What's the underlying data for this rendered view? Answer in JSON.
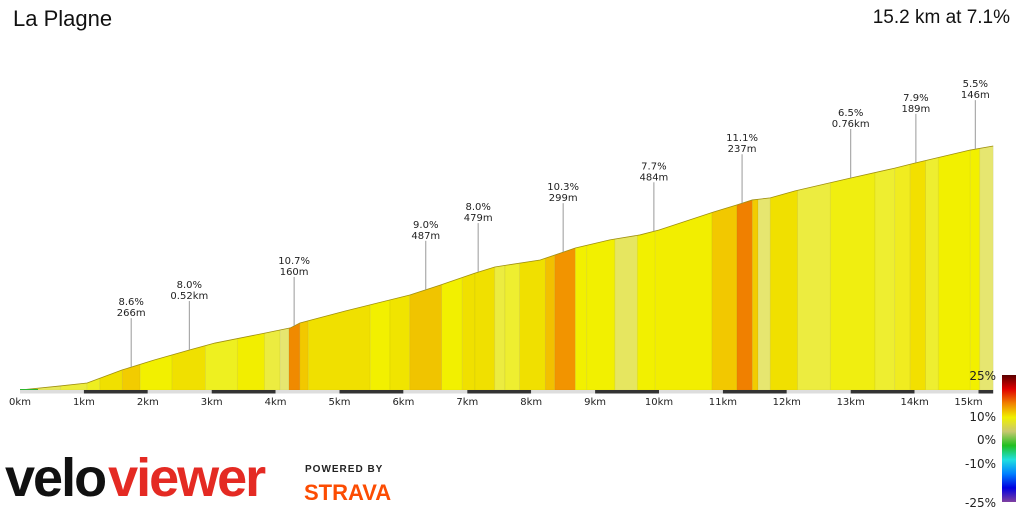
{
  "header": {
    "title": "La Plagne",
    "summary": "15.2 km at 7.1%"
  },
  "chart_data": {
    "type": "area",
    "xlabel": "",
    "ylabel": "",
    "xlim": [
      0,
      15.2
    ],
    "x_ticks": [
      "0km",
      "1km",
      "2km",
      "3km",
      "4km",
      "5km",
      "6km",
      "7km",
      "8km",
      "9km",
      "10km",
      "11km",
      "12km",
      "13km",
      "14km",
      "15km"
    ],
    "profile_km": [
      0,
      0.63,
      1.05,
      1.6,
      2.1,
      2.65,
      3.05,
      3.83,
      4.23,
      4.38,
      5.09,
      6.1,
      6.58,
      7.12,
      7.43,
      8.14,
      8.37,
      8.69,
      9.23,
      9.7,
      10.0,
      10.86,
      11.22,
      11.46,
      11.74,
      12.13,
      13.0,
      13.69,
      14.0,
      14.87,
      15.23
    ],
    "profile_elev_m": [
      0,
      18,
      31,
      89,
      133,
      177,
      208,
      252,
      275,
      297,
      350,
      421,
      465,
      518,
      545,
      576,
      598,
      629,
      665,
      687,
      709,
      789,
      820,
      842,
      851,
      882,
      939,
      983,
      1005,
      1063,
      1081
    ],
    "segments": [
      {
        "from": 0,
        "to": 0.63,
        "color": "#e6e85a",
        "start_color": "#2db52d"
      },
      {
        "from": 0.63,
        "to": 1.05,
        "color": "#ecec3c"
      },
      {
        "from": 1.05,
        "to": 1.25,
        "color": "#eeee20"
      },
      {
        "from": 1.25,
        "to": 1.6,
        "color": "#f0e000"
      },
      {
        "from": 1.6,
        "to": 1.88,
        "color": "#f2cc00"
      },
      {
        "from": 1.88,
        "to": 2.38,
        "color": "#f2f000"
      },
      {
        "from": 2.38,
        "to": 2.9,
        "color": "#f0e000"
      },
      {
        "from": 2.9,
        "to": 3.4,
        "color": "#eef020"
      },
      {
        "from": 3.4,
        "to": 3.83,
        "color": "#f2ee00"
      },
      {
        "from": 3.83,
        "to": 4.07,
        "color": "#ecec40"
      },
      {
        "from": 4.07,
        "to": 4.21,
        "color": "#e6e670"
      },
      {
        "from": 4.21,
        "to": 4.38,
        "color": "#f08a00"
      },
      {
        "from": 4.38,
        "to": 4.51,
        "color": "#f2c800"
      },
      {
        "from": 4.51,
        "to": 5.48,
        "color": "#f0e000"
      },
      {
        "from": 5.48,
        "to": 5.79,
        "color": "#f2f000"
      },
      {
        "from": 5.79,
        "to": 6.1,
        "color": "#f0e400"
      },
      {
        "from": 6.1,
        "to": 6.6,
        "color": "#f0c400"
      },
      {
        "from": 6.6,
        "to": 6.92,
        "color": "#f2f000"
      },
      {
        "from": 6.92,
        "to": 7.12,
        "color": "#f0e000"
      },
      {
        "from": 7.12,
        "to": 7.43,
        "color": "#f0e000"
      },
      {
        "from": 7.43,
        "to": 7.59,
        "color": "#ecec40"
      },
      {
        "from": 7.59,
        "to": 7.82,
        "color": "#eeee30"
      },
      {
        "from": 7.82,
        "to": 8.22,
        "color": "#f0e000"
      },
      {
        "from": 8.22,
        "to": 8.37,
        "color": "#f2c000"
      },
      {
        "from": 8.37,
        "to": 8.69,
        "color": "#f29400"
      },
      {
        "from": 8.69,
        "to": 8.87,
        "color": "#f2f000"
      },
      {
        "from": 8.87,
        "to": 9.31,
        "color": "#f2f000"
      },
      {
        "from": 9.31,
        "to": 9.66,
        "color": "#e6e660"
      },
      {
        "from": 9.66,
        "to": 9.94,
        "color": "#f2f000"
      },
      {
        "from": 9.94,
        "to": 10.83,
        "color": "#f2ee00"
      },
      {
        "from": 10.83,
        "to": 11.22,
        "color": "#f2c800"
      },
      {
        "from": 11.22,
        "to": 11.46,
        "color": "#f08000"
      },
      {
        "from": 11.46,
        "to": 11.55,
        "color": "#f2cc00"
      },
      {
        "from": 11.55,
        "to": 11.74,
        "color": "#e6e670"
      },
      {
        "from": 11.74,
        "to": 12.17,
        "color": "#f0e000"
      },
      {
        "from": 12.17,
        "to": 12.68,
        "color": "#ecec40"
      },
      {
        "from": 12.68,
        "to": 13.38,
        "color": "#f0ee10"
      },
      {
        "from": 13.38,
        "to": 13.69,
        "color": "#eeee30"
      },
      {
        "from": 13.69,
        "to": 13.93,
        "color": "#f0ec20"
      },
      {
        "from": 13.93,
        "to": 14.17,
        "color": "#f2e000"
      },
      {
        "from": 14.17,
        "to": 14.37,
        "color": "#eeee30"
      },
      {
        "from": 14.37,
        "to": 14.87,
        "color": "#f2f000"
      },
      {
        "from": 14.87,
        "to": 15.02,
        "color": "#f2f000"
      },
      {
        "from": 15.02,
        "to": 15.23,
        "color": "#e6e670"
      }
    ],
    "annotations": [
      {
        "km": 1.74,
        "grade": "8.6%",
        "length": "266m"
      },
      {
        "km": 2.65,
        "grade": "8.0%",
        "length": "0.52km"
      },
      {
        "km": 4.29,
        "grade": "10.7%",
        "length": "160m"
      },
      {
        "km": 6.35,
        "grade": "9.0%",
        "length": "487m"
      },
      {
        "km": 7.17,
        "grade": "8.0%",
        "length": "479m"
      },
      {
        "km": 8.5,
        "grade": "10.3%",
        "length": "299m"
      },
      {
        "km": 9.92,
        "grade": "7.7%",
        "length": "484m"
      },
      {
        "km": 11.3,
        "grade": "11.1%",
        "length": "237m"
      },
      {
        "km": 13.0,
        "grade": "6.5%",
        "length": "0.76km"
      },
      {
        "km": 14.02,
        "grade": "7.9%",
        "length": "189m"
      },
      {
        "km": 14.95,
        "grade": "5.5%",
        "length": "146m"
      }
    ],
    "legend": {
      "labels": [
        "25%",
        "10%",
        "0%",
        "-10%",
        "-25%"
      ],
      "colors": [
        "#5a0000",
        "#e00000",
        "#f08000",
        "#f0f000",
        "#c8c870",
        "#20c020",
        "#20e0e0",
        "#0080ff",
        "#0000e0",
        "#8040a0"
      ]
    }
  },
  "branding": {
    "logo_left": "velo",
    "logo_right": "viewer",
    "powered_by": "POWERED BY",
    "strava": "STRAVA"
  }
}
